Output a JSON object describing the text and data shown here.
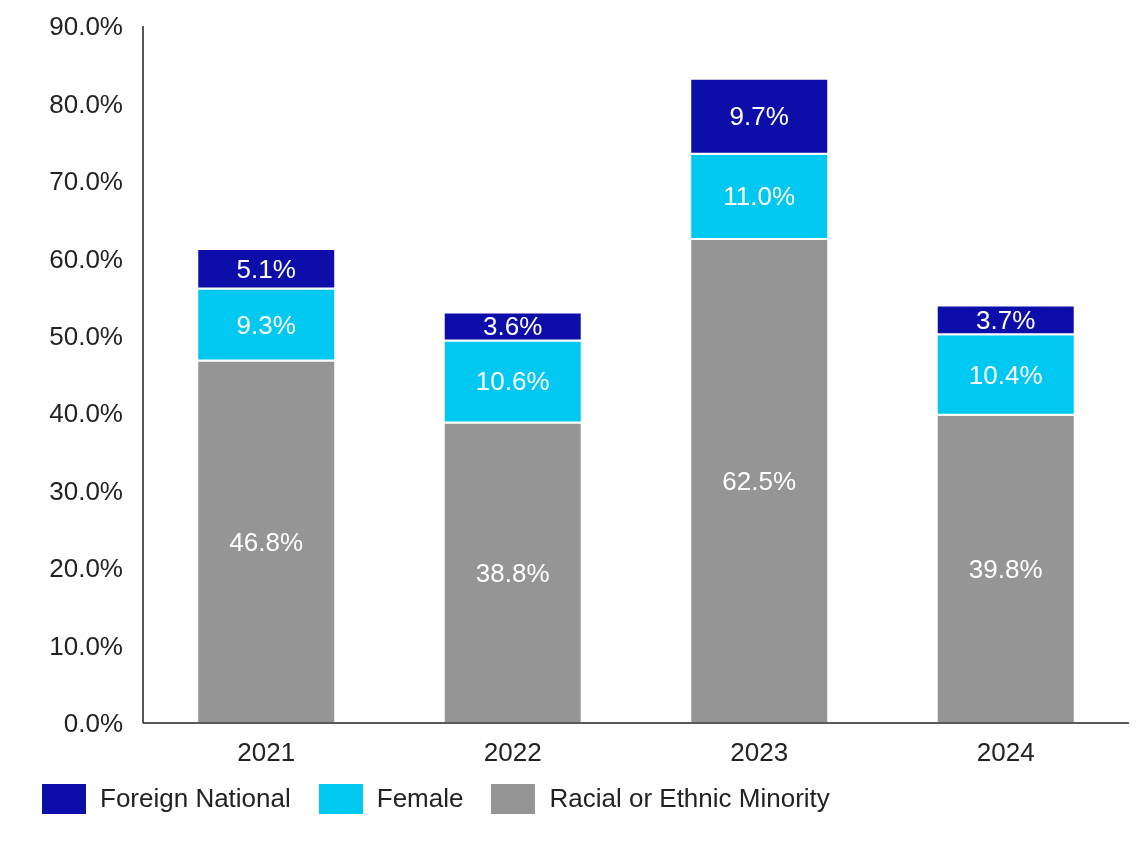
{
  "chart_data": {
    "type": "bar",
    "stacked": true,
    "categories": [
      "2021",
      "2022",
      "2023",
      "2024"
    ],
    "series": [
      {
        "name": "Racial or Ethnic Minority",
        "color": "#959595",
        "values": [
          46.8,
          38.8,
          62.5,
          39.8
        ],
        "value_labels": [
          "46.8%",
          "38.8%",
          "62.5%",
          "39.8%"
        ]
      },
      {
        "name": "Female",
        "color": "#00c8f0",
        "values": [
          9.3,
          10.6,
          11.0,
          10.4
        ],
        "value_labels": [
          "9.3%",
          "10.6%",
          "11.0%",
          "10.4%"
        ]
      },
      {
        "name": "Foreign National",
        "color": "#0d0daa",
        "values": [
          5.1,
          3.6,
          9.7,
          3.7
        ],
        "value_labels": [
          "5.1%",
          "3.6%",
          "9.7%",
          "3.7%"
        ]
      }
    ],
    "ylim": [
      0,
      90
    ],
    "yticks": [
      {
        "value": 0,
        "label": "0.0%"
      },
      {
        "value": 10,
        "label": "10.0%"
      },
      {
        "value": 20,
        "label": "20.0%"
      },
      {
        "value": 30,
        "label": "30.0%"
      },
      {
        "value": 40,
        "label": "40.0%"
      },
      {
        "value": 50,
        "label": "50.0%"
      },
      {
        "value": 60,
        "label": "60.0%"
      },
      {
        "value": 70,
        "label": "70.0%"
      },
      {
        "value": 80,
        "label": "80.0%"
      },
      {
        "value": 90,
        "label": "90.0%"
      }
    ],
    "grid": false,
    "legend": "bottom"
  }
}
